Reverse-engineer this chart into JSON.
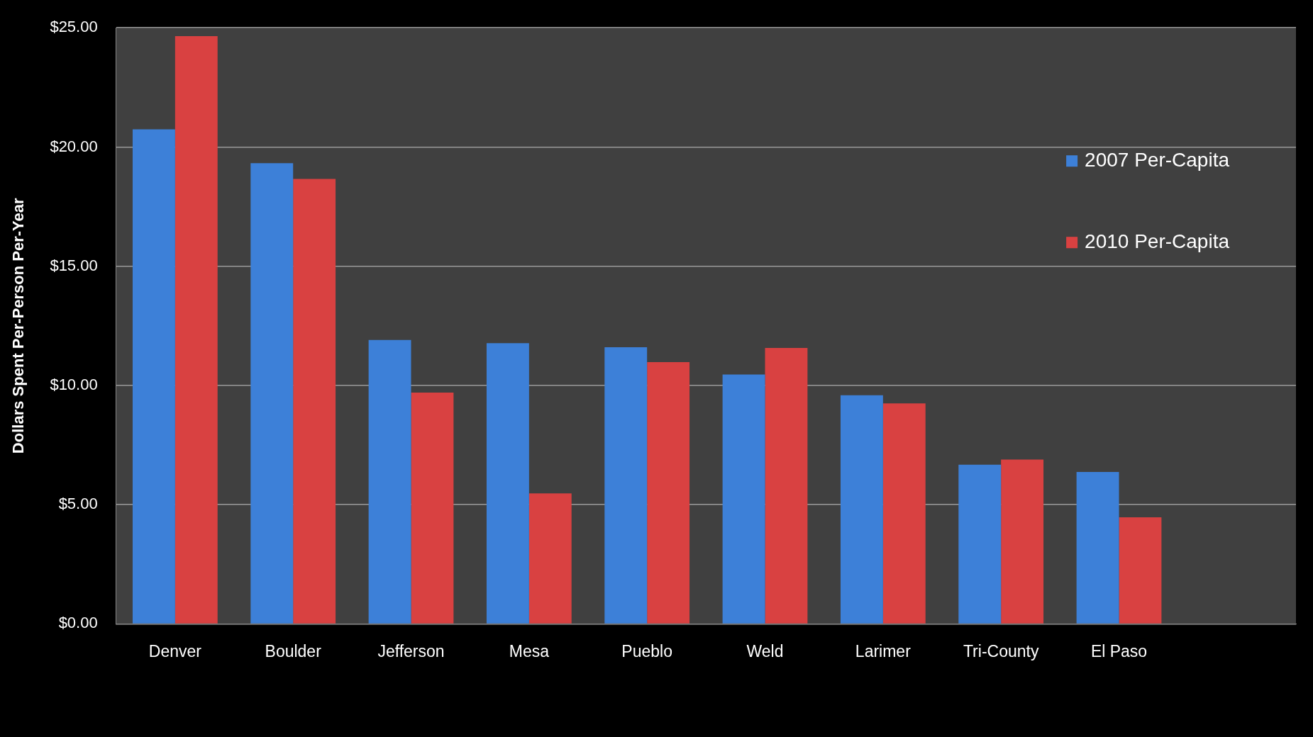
{
  "chart_data": {
    "type": "bar",
    "ylabel": "Dollars Spent Per-Person Per-Year",
    "categories": [
      "Denver",
      "Boulder",
      "Jefferson",
      "Mesa",
      "Pueblo",
      "Weld",
      "Larimer",
      "Tri-County",
      "El Paso",
      null
    ],
    "series": [
      {
        "name": "2007 Per-Capita",
        "color": "#3d80d8",
        "values": [
          20.74,
          19.32,
          11.91,
          11.77,
          11.6,
          10.46,
          9.59,
          6.68,
          6.37,
          null
        ]
      },
      {
        "name": "2010 Per-Capita",
        "color": "#d94141",
        "values": [
          24.65,
          18.66,
          9.7,
          5.47,
          10.98,
          11.57,
          9.25,
          6.89,
          4.47,
          null
        ]
      }
    ],
    "ylim": [
      0,
      25
    ],
    "yticks": [
      {
        "value": 0,
        "label": "$0.00"
      },
      {
        "value": 5,
        "label": "$5.00"
      },
      {
        "value": 10,
        "label": "$10.00"
      },
      {
        "value": 15,
        "label": "$15.00"
      },
      {
        "value": 20,
        "label": "$20.00"
      },
      {
        "value": 25,
        "label": "$25.00"
      }
    ],
    "grid": "y",
    "legend": "top right"
  }
}
